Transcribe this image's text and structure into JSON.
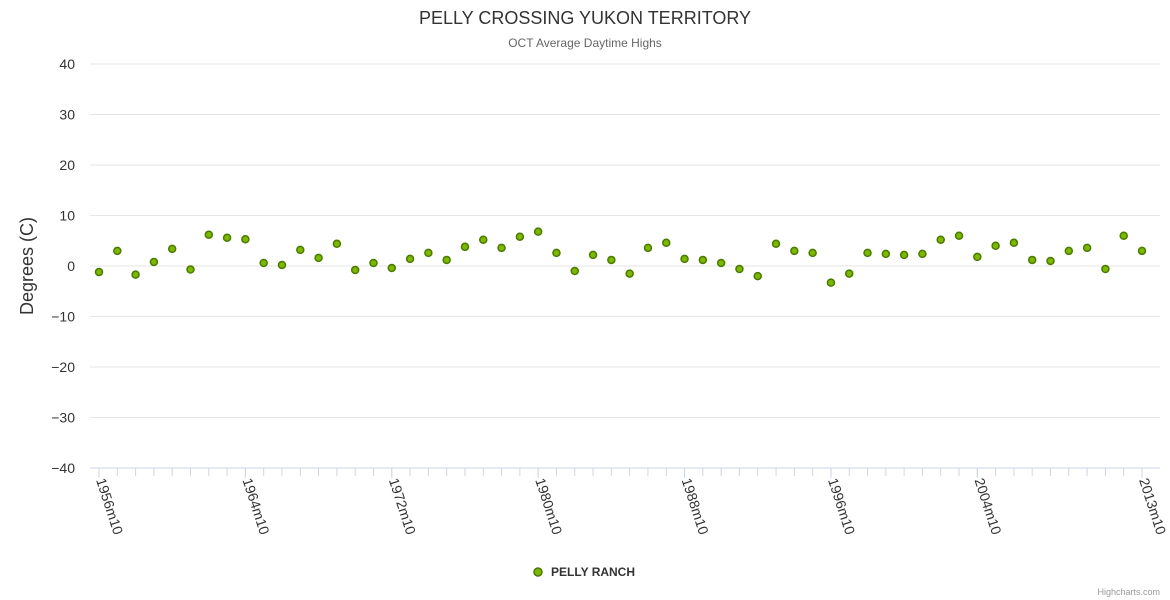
{
  "chart_data": {
    "type": "scatter",
    "title": "PELLY CROSSING YUKON TERRITORY",
    "subtitle": "OCT Average Daytime Highs",
    "ylabel": "Degrees (C)",
    "xlabel": "",
    "ylim": [
      -40,
      40
    ],
    "yticks": [
      "40",
      "30",
      "20",
      "10",
      "0",
      "−10",
      "−20",
      "−30",
      "−40"
    ],
    "ytick_values": [
      40,
      30,
      20,
      10,
      0,
      -10,
      -20,
      -30,
      -40
    ],
    "xticks": [
      {
        "label": "1956m10",
        "year": 1956
      },
      {
        "label": "1964m10",
        "year": 1964
      },
      {
        "label": "1972m10",
        "year": 1972
      },
      {
        "label": "1980m10",
        "year": 1980
      },
      {
        "label": "1988m10",
        "year": 1988
      },
      {
        "label": "1996m10",
        "year": 1996
      },
      {
        "label": "2004m10",
        "year": 2004
      },
      {
        "label": "2013m10",
        "year": 2013
      }
    ],
    "x_range": [
      1956,
      2013
    ],
    "series": [
      {
        "name": "PELLY RANCH",
        "color": "#7cb800",
        "border_color": "#4a7a00",
        "x": [
          1956,
          1957,
          1958,
          1959,
          1960,
          1961,
          1962,
          1963,
          1964,
          1965,
          1966,
          1967,
          1968,
          1969,
          1970,
          1971,
          1972,
          1973,
          1974,
          1975,
          1976,
          1977,
          1978,
          1979,
          1980,
          1981,
          1982,
          1983,
          1984,
          1985,
          1986,
          1987,
          1988,
          1989,
          1990,
          1991,
          1992,
          1993,
          1994,
          1995,
          1996,
          1997,
          1998,
          1999,
          2000,
          2001,
          2002,
          2003,
          2004,
          2005,
          2006,
          2007,
          2008,
          2009,
          2010,
          2011,
          2012,
          2013
        ],
        "y": [
          -1.2,
          3.0,
          -1.7,
          0.8,
          3.4,
          -0.7,
          6.2,
          5.6,
          5.3,
          0.6,
          0.2,
          3.2,
          1.6,
          4.4,
          -0.8,
          0.6,
          -0.4,
          1.4,
          2.6,
          1.2,
          3.8,
          5.2,
          3.6,
          5.8,
          6.8,
          2.6,
          -1.0,
          2.2,
          1.2,
          -1.5,
          3.6,
          4.6,
          1.4,
          1.2,
          0.6,
          -0.6,
          -2.0,
          4.4,
          3.0,
          2.6,
          -3.3,
          -1.5,
          2.6,
          2.4,
          2.2,
          2.4,
          5.2,
          6.0,
          1.8,
          4.0,
          4.6,
          1.2,
          1.0,
          3.0,
          3.6,
          -0.6,
          6.0,
          3.0
        ]
      }
    ],
    "legend": {
      "label": "PELLY RANCH",
      "position": "bottom-center"
    },
    "grid": true
  },
  "credits": "Highcharts.com"
}
